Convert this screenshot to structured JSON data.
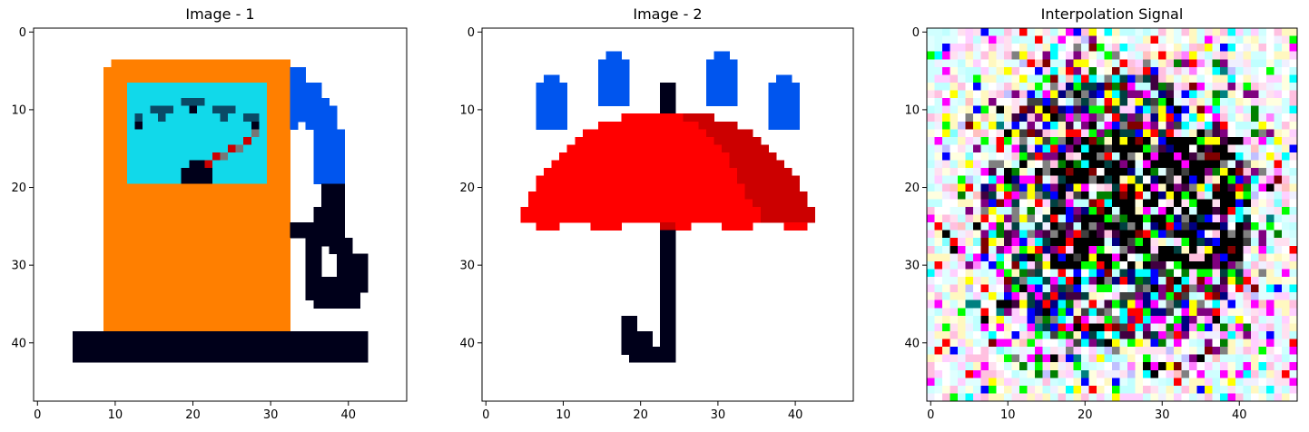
{
  "figure": {
    "panels": [
      {
        "title": "Image - 1",
        "id": "image-1"
      },
      {
        "title": "Image - 2",
        "id": "image-2"
      },
      {
        "title": "Interpolation Signal",
        "id": "interpolation-signal"
      }
    ]
  },
  "chart_data": [
    {
      "type": "heatmap",
      "title": "Image - 1",
      "xlabel": "",
      "ylabel": "",
      "xlim": [
        -0.5,
        47.5
      ],
      "ylim": [
        47.5,
        -0.5
      ],
      "xticks": [
        0,
        10,
        20,
        30,
        40
      ],
      "yticks": [
        0,
        10,
        20,
        30,
        40
      ],
      "grid": false,
      "description_of_content": "pixel-art fuel pump",
      "shapes": [
        {
          "label": "pump-body",
          "color": "#ff7f00",
          "x0": 8.5,
          "y0": 4.5,
          "x1": 32.5,
          "y1": 38.5
        },
        {
          "label": "gauge",
          "color": "#11d9ea",
          "x0": 11.5,
          "y0": 7.5,
          "x1": 29.5,
          "y1": 19.5
        },
        {
          "label": "base",
          "color": "#00001a",
          "x0": 4.5,
          "y0": 38.5,
          "x1": 42.5,
          "y1": 42.5
        },
        {
          "label": "nozzle-hose",
          "color": "#0055ee"
        },
        {
          "label": "hose",
          "color": "#00001a"
        }
      ]
    },
    {
      "type": "heatmap",
      "title": "Image - 2",
      "xlabel": "",
      "ylabel": "",
      "xlim": [
        -0.5,
        47.5
      ],
      "ylim": [
        47.5,
        -0.5
      ],
      "xticks": [
        0,
        10,
        20,
        30,
        40
      ],
      "yticks": [
        0,
        10,
        20,
        30,
        40
      ],
      "grid": false,
      "description_of_content": "pixel-art umbrella with rain drops",
      "shapes": [
        {
          "label": "canopy",
          "color": "#ff0000"
        },
        {
          "label": "canopy-shade",
          "color": "#cc0000"
        },
        {
          "label": "handle",
          "color": "#00001a"
        },
        {
          "label": "raindrops",
          "color": "#0055ee"
        }
      ]
    },
    {
      "type": "heatmap",
      "title": "Interpolation Signal",
      "xlabel": "",
      "ylabel": "",
      "xlim": [
        -0.5,
        47.5
      ],
      "ylim": [
        47.5,
        -0.5
      ],
      "xticks": [
        0,
        10,
        20,
        30,
        40
      ],
      "yticks": [
        0,
        10,
        20,
        30,
        40
      ],
      "grid": false,
      "description_of_content": "random multicolor noise, lighter near edges, darker in center",
      "palette": [
        "#ffffff",
        "#ffe0f0",
        "#fff8c0",
        "#e0ffff",
        "#ff00ff",
        "#00ffff",
        "#00ff00",
        "#ffff00",
        "#ff0000",
        "#0000ff",
        "#000000",
        "#808080",
        "#800080",
        "#008080",
        "#008000",
        "#800000",
        "#ff80ff",
        "#80ffff",
        "#ffc0c0",
        "#c0c0ff"
      ]
    }
  ]
}
